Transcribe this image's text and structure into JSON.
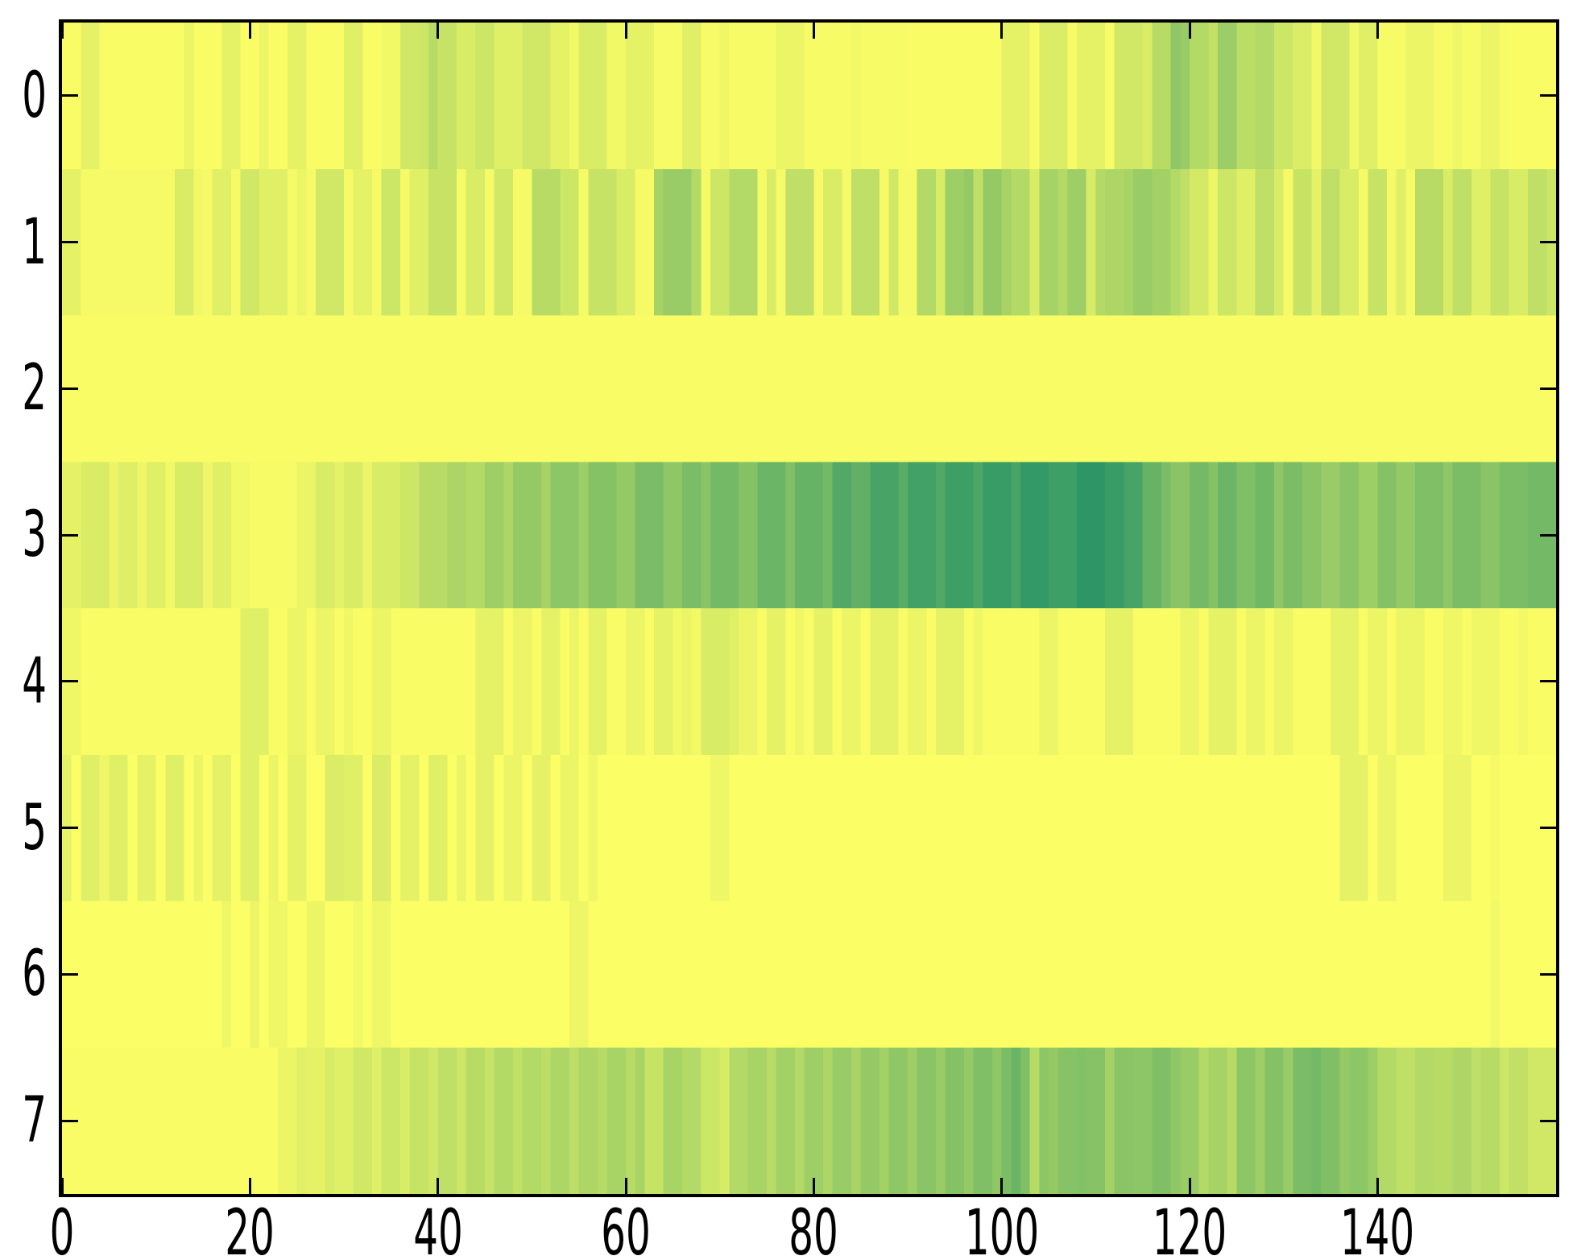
{
  "figure": {
    "background_color": "#ffffff",
    "frame_color": "#000000",
    "tick_color": "#000000",
    "label_color": "#000000"
  },
  "chart_data": {
    "type": "heatmap",
    "title": "",
    "xlabel": "",
    "ylabel": "",
    "grid": false,
    "legend": "none",
    "n_rows": 8,
    "n_cols": 159,
    "x_range": [
      0,
      159
    ],
    "x_ticks": [
      0,
      20,
      40,
      60,
      80,
      100,
      120,
      140
    ],
    "x_tick_labels": [
      "0",
      "20",
      "40",
      "60",
      "80",
      "100",
      "120",
      "140"
    ],
    "y_ticks": [
      0,
      1,
      2,
      3,
      4,
      5,
      6,
      7
    ],
    "y_tick_labels": [
      "0",
      "1",
      "2",
      "3",
      "4",
      "5",
      "6",
      "7"
    ],
    "colormap": {
      "name": "summer_r",
      "low_value_color": "#ffff66",
      "high_value_color": "#2e9666",
      "formula": "r=255*(1-v), g=255*(0.5+0.5*(1-v)), b=102"
    },
    "value_range": [
      0,
      1
    ],
    "values": [
      [
        0.02,
        0.02,
        0.1,
        0.1,
        0.02,
        0.02,
        0.02,
        0.02,
        0.02,
        0.02,
        0.02,
        0.02,
        0.02,
        0.08,
        0.02,
        0.02,
        0.02,
        0.1,
        0.1,
        0.02,
        0.02,
        0.08,
        0.02,
        0.02,
        0.1,
        0.1,
        0.02,
        0.02,
        0.02,
        0.02,
        0.12,
        0.12,
        0.02,
        0.02,
        0.05,
        0.05,
        0.18,
        0.18,
        0.2,
        0.28,
        0.22,
        0.22,
        0.15,
        0.15,
        0.2,
        0.2,
        0.12,
        0.12,
        0.12,
        0.18,
        0.18,
        0.18,
        0.1,
        0.1,
        0.05,
        0.15,
        0.15,
        0.15,
        0.05,
        0.05,
        0.1,
        0.1,
        0.1,
        0.03,
        0.03,
        0.03,
        0.12,
        0.12,
        0.03,
        0.03,
        0.06,
        0.03,
        0.03,
        0.03,
        0.03,
        0.03,
        0.08,
        0.08,
        0.08,
        0.03,
        0.03,
        0.03,
        0.03,
        0.03,
        0.05,
        0.03,
        0.03,
        0.03,
        0.03,
        0.03,
        0.02,
        0.02,
        0.02,
        0.02,
        0.02,
        0.02,
        0.02,
        0.02,
        0.02,
        0.02,
        0.1,
        0.1,
        0.1,
        0.03,
        0.14,
        0.14,
        0.14,
        0.03,
        0.1,
        0.1,
        0.1,
        0.03,
        0.18,
        0.18,
        0.18,
        0.14,
        0.28,
        0.28,
        0.44,
        0.4,
        0.3,
        0.3,
        0.24,
        0.39,
        0.39,
        0.27,
        0.27,
        0.3,
        0.3,
        0.2,
        0.2,
        0.14,
        0.14,
        0.05,
        0.18,
        0.18,
        0.18,
        0.05,
        0.12,
        0.12,
        0.03,
        0.03,
        0.03,
        0.08,
        0.08,
        0.08,
        0.03,
        0.03,
        0.06,
        0.03,
        0.03,
        0.08,
        0.08,
        0.03,
        0.02,
        0.02,
        0.02,
        0.02,
        0.02
      ],
      [
        0.1,
        0.1,
        0.04,
        0.04,
        0.04,
        0.04,
        0.04,
        0.04,
        0.04,
        0.04,
        0.04,
        0.04,
        0.15,
        0.15,
        0.05,
        0.04,
        0.12,
        0.12,
        0.04,
        0.18,
        0.18,
        0.12,
        0.12,
        0.12,
        0.04,
        0.08,
        0.04,
        0.18,
        0.18,
        0.18,
        0.04,
        0.1,
        0.1,
        0.04,
        0.2,
        0.2,
        0.04,
        0.12,
        0.12,
        0.22,
        0.22,
        0.22,
        0.04,
        0.15,
        0.15,
        0.04,
        0.18,
        0.18,
        0.04,
        0.04,
        0.28,
        0.28,
        0.28,
        0.2,
        0.2,
        0.04,
        0.22,
        0.22,
        0.22,
        0.15,
        0.15,
        0.04,
        0.04,
        0.35,
        0.4,
        0.4,
        0.4,
        0.3,
        0.04,
        0.2,
        0.2,
        0.3,
        0.3,
        0.3,
        0.04,
        0.15,
        0.04,
        0.25,
        0.25,
        0.25,
        0.04,
        0.15,
        0.15,
        0.04,
        0.25,
        0.25,
        0.25,
        0.04,
        0.18,
        0.04,
        0.04,
        0.3,
        0.3,
        0.15,
        0.38,
        0.38,
        0.42,
        0.25,
        0.42,
        0.42,
        0.35,
        0.3,
        0.3,
        0.15,
        0.35,
        0.35,
        0.3,
        0.38,
        0.38,
        0.16,
        0.3,
        0.32,
        0.32,
        0.34,
        0.4,
        0.4,
        0.36,
        0.36,
        0.3,
        0.25,
        0.17,
        0.17,
        0.07,
        0.2,
        0.2,
        0.12,
        0.12,
        0.25,
        0.25,
        0.15,
        0.04,
        0.22,
        0.22,
        0.1,
        0.25,
        0.25,
        0.15,
        0.15,
        0.04,
        0.22,
        0.22,
        0.04,
        0.12,
        0.04,
        0.28,
        0.28,
        0.28,
        0.15,
        0.25,
        0.25,
        0.12,
        0.12,
        0.22,
        0.22,
        0.15,
        0.15,
        0.25,
        0.25,
        0.2
      ],
      [
        0.02,
        0.02,
        0.02,
        0.02,
        0.02,
        0.02,
        0.02,
        0.02,
        0.02,
        0.02,
        0.02,
        0.02,
        0.02,
        0.02,
        0.02,
        0.02,
        0.02,
        0.02,
        0.02,
        0.02,
        0.02,
        0.02,
        0.02,
        0.02,
        0.02,
        0.02,
        0.02,
        0.02,
        0.02,
        0.02,
        0.02,
        0.02,
        0.02,
        0.02,
        0.02,
        0.02,
        0.02,
        0.02,
        0.02,
        0.02,
        0.02,
        0.02,
        0.02,
        0.02,
        0.02,
        0.02,
        0.02,
        0.02,
        0.02,
        0.02,
        0.02,
        0.02,
        0.02,
        0.02,
        0.02,
        0.02,
        0.02,
        0.02,
        0.02,
        0.02,
        0.02,
        0.02,
        0.02,
        0.02,
        0.02,
        0.02,
        0.02,
        0.02,
        0.02,
        0.02,
        0.02,
        0.02,
        0.02,
        0.02,
        0.02,
        0.02,
        0.02,
        0.02,
        0.02,
        0.02,
        0.02,
        0.02,
        0.02,
        0.02,
        0.02,
        0.02,
        0.02,
        0.02,
        0.02,
        0.02,
        0.02,
        0.02,
        0.02,
        0.02,
        0.02,
        0.02,
        0.02,
        0.02,
        0.02,
        0.02,
        0.02,
        0.02,
        0.02,
        0.02,
        0.02,
        0.02,
        0.02,
        0.02,
        0.02,
        0.02,
        0.02,
        0.02,
        0.02,
        0.02,
        0.02,
        0.02,
        0.02,
        0.02,
        0.02,
        0.02,
        0.02,
        0.02,
        0.02,
        0.02,
        0.02,
        0.02,
        0.02,
        0.02,
        0.02,
        0.02,
        0.02,
        0.02,
        0.02,
        0.02,
        0.02,
        0.02,
        0.02,
        0.02,
        0.02,
        0.02,
        0.02,
        0.02,
        0.02,
        0.02,
        0.02,
        0.02,
        0.02,
        0.02,
        0.02,
        0.02,
        0.02,
        0.02,
        0.02,
        0.02,
        0.02,
        0.02,
        0.02,
        0.02,
        0.02
      ],
      [
        0.1,
        0.1,
        0.15,
        0.15,
        0.15,
        0.08,
        0.13,
        0.13,
        0.06,
        0.12,
        0.12,
        0.05,
        0.15,
        0.15,
        0.15,
        0.06,
        0.12,
        0.12,
        0.05,
        0.05,
        0.03,
        0.03,
        0.03,
        0.03,
        0.03,
        0.08,
        0.08,
        0.15,
        0.15,
        0.1,
        0.15,
        0.15,
        0.08,
        0.15,
        0.15,
        0.15,
        0.2,
        0.2,
        0.28,
        0.28,
        0.28,
        0.33,
        0.33,
        0.3,
        0.3,
        0.38,
        0.38,
        0.32,
        0.42,
        0.42,
        0.42,
        0.35,
        0.45,
        0.45,
        0.45,
        0.38,
        0.48,
        0.48,
        0.48,
        0.42,
        0.42,
        0.52,
        0.52,
        0.52,
        0.44,
        0.44,
        0.52,
        0.52,
        0.46,
        0.55,
        0.55,
        0.55,
        0.48,
        0.48,
        0.58,
        0.58,
        0.58,
        0.5,
        0.6,
        0.6,
        0.6,
        0.55,
        0.68,
        0.68,
        0.62,
        0.62,
        0.72,
        0.72,
        0.72,
        0.65,
        0.74,
        0.74,
        0.74,
        0.68,
        0.76,
        0.76,
        0.76,
        0.7,
        0.78,
        0.78,
        0.78,
        0.72,
        0.8,
        0.8,
        0.8,
        0.76,
        0.76,
        0.76,
        0.82,
        0.82,
        0.82,
        0.78,
        0.78,
        0.72,
        0.72,
        0.6,
        0.6,
        0.52,
        0.46,
        0.46,
        0.55,
        0.55,
        0.48,
        0.58,
        0.58,
        0.5,
        0.5,
        0.56,
        0.56,
        0.44,
        0.52,
        0.52,
        0.46,
        0.46,
        0.4,
        0.4,
        0.46,
        0.46,
        0.38,
        0.38,
        0.48,
        0.48,
        0.42,
        0.42,
        0.5,
        0.5,
        0.5,
        0.44,
        0.52,
        0.52,
        0.52,
        0.46,
        0.46,
        0.52,
        0.52,
        0.52,
        0.55,
        0.55,
        0.55
      ],
      [
        0.06,
        0.06,
        0.02,
        0.02,
        0.02,
        0.02,
        0.02,
        0.02,
        0.02,
        0.02,
        0.02,
        0.02,
        0.02,
        0.02,
        0.02,
        0.02,
        0.02,
        0.02,
        0.02,
        0.12,
        0.12,
        0.12,
        0.02,
        0.02,
        0.08,
        0.08,
        0.02,
        0.08,
        0.08,
        0.02,
        0.06,
        0.02,
        0.02,
        0.08,
        0.08,
        0.02,
        0.02,
        0.02,
        0.02,
        0.02,
        0.02,
        0.02,
        0.02,
        0.02,
        0.1,
        0.1,
        0.1,
        0.02,
        0.08,
        0.08,
        0.02,
        0.1,
        0.1,
        0.02,
        0.08,
        0.02,
        0.1,
        0.1,
        0.02,
        0.02,
        0.08,
        0.08,
        0.02,
        0.1,
        0.1,
        0.05,
        0.08,
        0.05,
        0.15,
        0.15,
        0.15,
        0.12,
        0.08,
        0.08,
        0.02,
        0.1,
        0.1,
        0.02,
        0.06,
        0.02,
        0.1,
        0.1,
        0.02,
        0.08,
        0.08,
        0.02,
        0.1,
        0.1,
        0.1,
        0.02,
        0.08,
        0.08,
        0.02,
        0.1,
        0.1,
        0.1,
        0.02,
        0.06,
        0.02,
        0.02,
        0.02,
        0.02,
        0.02,
        0.02,
        0.08,
        0.08,
        0.02,
        0.02,
        0.02,
        0.02,
        0.02,
        0.1,
        0.1,
        0.1,
        0.02,
        0.02,
        0.02,
        0.02,
        0.02,
        0.08,
        0.08,
        0.02,
        0.1,
        0.1,
        0.1,
        0.02,
        0.08,
        0.08,
        0.02,
        0.08,
        0.08,
        0.02,
        0.02,
        0.02,
        0.02,
        0.1,
        0.1,
        0.1,
        0.02,
        0.08,
        0.08,
        0.02,
        0.08,
        0.08,
        0.08,
        0.02,
        0.02,
        0.06,
        0.06,
        0.02,
        0.06,
        0.06,
        0.06,
        0.02,
        0.02,
        0.05,
        0.02,
        0.02,
        0.02
      ],
      [
        0.1,
        0.01,
        0.12,
        0.12,
        0.06,
        0.12,
        0.12,
        0.01,
        0.1,
        0.1,
        0.01,
        0.12,
        0.12,
        0.01,
        0.08,
        0.01,
        0.1,
        0.1,
        0.01,
        0.12,
        0.12,
        0.01,
        0.08,
        0.01,
        0.1,
        0.1,
        0.01,
        0.01,
        0.14,
        0.14,
        0.12,
        0.12,
        0.01,
        0.14,
        0.14,
        0.01,
        0.1,
        0.1,
        0.01,
        0.12,
        0.12,
        0.01,
        0.08,
        0.01,
        0.1,
        0.1,
        0.01,
        0.08,
        0.08,
        0.01,
        0.1,
        0.1,
        0.01,
        0.08,
        0.08,
        0.01,
        0.06,
        0.01,
        0.01,
        0.01,
        0.01,
        0.01,
        0.01,
        0.01,
        0.01,
        0.01,
        0.01,
        0.01,
        0.01,
        0.06,
        0.06,
        0.01,
        0.01,
        0.01,
        0.01,
        0.01,
        0.01,
        0.01,
        0.01,
        0.01,
        0.01,
        0.01,
        0.01,
        0.01,
        0.01,
        0.01,
        0.01,
        0.01,
        0.01,
        0.01,
        0.01,
        0.01,
        0.01,
        0.01,
        0.01,
        0.01,
        0.01,
        0.01,
        0.01,
        0.01,
        0.01,
        0.01,
        0.01,
        0.01,
        0.01,
        0.01,
        0.01,
        0.01,
        0.01,
        0.01,
        0.01,
        0.01,
        0.01,
        0.01,
        0.01,
        0.01,
        0.01,
        0.01,
        0.01,
        0.01,
        0.01,
        0.01,
        0.01,
        0.01,
        0.01,
        0.01,
        0.01,
        0.01,
        0.01,
        0.01,
        0.01,
        0.01,
        0.01,
        0.01,
        0.01,
        0.01,
        0.1,
        0.1,
        0.1,
        0.01,
        0.08,
        0.08,
        0.01,
        0.01,
        0.01,
        0.01,
        0.01,
        0.08,
        0.08,
        0.08,
        0.01,
        0.01,
        0.04,
        0.01,
        0.01,
        0.01,
        0.01,
        0.01,
        0.01
      ],
      [
        0.01,
        0.01,
        0.01,
        0.01,
        0.01,
        0.01,
        0.01,
        0.01,
        0.01,
        0.01,
        0.01,
        0.01,
        0.01,
        0.01,
        0.01,
        0.01,
        0.01,
        0.06,
        0.01,
        0.01,
        0.08,
        0.01,
        0.06,
        0.06,
        0.01,
        0.01,
        0.08,
        0.08,
        0.01,
        0.01,
        0.01,
        0.05,
        0.01,
        0.06,
        0.06,
        0.01,
        0.01,
        0.01,
        0.01,
        0.01,
        0.01,
        0.01,
        0.01,
        0.01,
        0.01,
        0.01,
        0.01,
        0.01,
        0.01,
        0.01,
        0.01,
        0.01,
        0.01,
        0.01,
        0.07,
        0.07,
        0.01,
        0.01,
        0.01,
        0.01,
        0.01,
        0.01,
        0.01,
        0.01,
        0.01,
        0.01,
        0.01,
        0.01,
        0.01,
        0.01,
        0.01,
        0.01,
        0.01,
        0.01,
        0.01,
        0.01,
        0.01,
        0.01,
        0.01,
        0.01,
        0.01,
        0.01,
        0.01,
        0.01,
        0.01,
        0.01,
        0.01,
        0.01,
        0.01,
        0.01,
        0.01,
        0.01,
        0.01,
        0.01,
        0.01,
        0.01,
        0.01,
        0.01,
        0.01,
        0.01,
        0.01,
        0.01,
        0.01,
        0.01,
        0.01,
        0.01,
        0.01,
        0.01,
        0.01,
        0.01,
        0.01,
        0.01,
        0.01,
        0.01,
        0.01,
        0.01,
        0.01,
        0.01,
        0.01,
        0.01,
        0.01,
        0.01,
        0.01,
        0.01,
        0.01,
        0.01,
        0.01,
        0.01,
        0.01,
        0.01,
        0.01,
        0.01,
        0.01,
        0.01,
        0.01,
        0.01,
        0.01,
        0.01,
        0.01,
        0.01,
        0.01,
        0.01,
        0.01,
        0.01,
        0.01,
        0.01,
        0.01,
        0.01,
        0.01,
        0.01,
        0.01,
        0.01,
        0.05,
        0.01,
        0.01,
        0.01,
        0.01,
        0.01,
        0.01
      ],
      [
        0.02,
        0.02,
        0.02,
        0.02,
        0.02,
        0.02,
        0.02,
        0.02,
        0.02,
        0.02,
        0.02,
        0.02,
        0.02,
        0.02,
        0.02,
        0.02,
        0.02,
        0.02,
        0.02,
        0.02,
        0.02,
        0.02,
        0.02,
        0.08,
        0.08,
        0.12,
        0.1,
        0.1,
        0.15,
        0.12,
        0.12,
        0.18,
        0.18,
        0.12,
        0.2,
        0.2,
        0.15,
        0.22,
        0.22,
        0.18,
        0.25,
        0.25,
        0.2,
        0.28,
        0.28,
        0.22,
        0.3,
        0.3,
        0.24,
        0.3,
        0.3,
        0.26,
        0.32,
        0.32,
        0.26,
        0.32,
        0.32,
        0.28,
        0.34,
        0.34,
        0.28,
        0.34,
        0.22,
        0.22,
        0.34,
        0.34,
        0.3,
        0.3,
        0.2,
        0.2,
        0.16,
        0.3,
        0.3,
        0.34,
        0.34,
        0.28,
        0.36,
        0.36,
        0.3,
        0.38,
        0.38,
        0.32,
        0.4,
        0.4,
        0.34,
        0.42,
        0.42,
        0.36,
        0.44,
        0.44,
        0.38,
        0.46,
        0.46,
        0.4,
        0.48,
        0.48,
        0.42,
        0.5,
        0.5,
        0.44,
        0.52,
        0.58,
        0.5,
        0.29,
        0.45,
        0.42,
        0.47,
        0.47,
        0.49,
        0.47,
        0.47,
        0.36,
        0.46,
        0.46,
        0.45,
        0.45,
        0.5,
        0.5,
        0.44,
        0.4,
        0.4,
        0.3,
        0.35,
        0.35,
        0.28,
        0.45,
        0.45,
        0.38,
        0.48,
        0.48,
        0.4,
        0.52,
        0.52,
        0.55,
        0.5,
        0.5,
        0.42,
        0.45,
        0.45,
        0.38,
        0.3,
        0.3,
        0.25,
        0.25,
        0.3,
        0.3,
        0.28,
        0.28,
        0.32,
        0.32,
        0.25,
        0.28,
        0.28,
        0.2,
        0.24,
        0.24,
        0.18,
        0.18,
        0.18
      ]
    ]
  }
}
